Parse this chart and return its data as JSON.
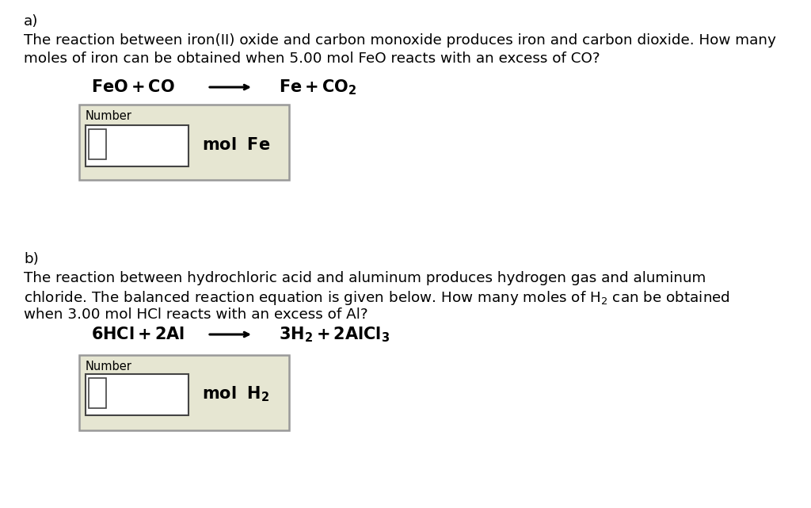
{
  "background_color": "#ffffff",
  "part_a_label": "a)",
  "part_a_text_line1": "The reaction between iron(II) oxide and carbon monoxide produces iron and carbon dioxide. How many",
  "part_a_text_line2": "moles of iron can be obtained when 5.00 mol FeO reacts with an excess of CO?",
  "part_a_unit": "mol  Fe",
  "part_b_label": "b)",
  "part_b_text_line1": "The reaction between hydrochloric acid and aluminum produces hydrogen gas and aluminum",
  "part_b_text_line2": "chloride. The balanced reaction equation is given below. How many moles of H$_2$ can be obtained",
  "part_b_text_line3": "when 3.00 mol HCl reacts with an excess of Al?",
  "part_b_unit": "mol  H$_2$",
  "box_bg": "#e6e6d2",
  "box_border": "#999999",
  "inner_box_bg": "#ffffff",
  "inner_box_border": "#444444",
  "number_label": "Number",
  "eq_fontsize": 15,
  "text_fontsize": 13.2,
  "number_fontsize": 10.5
}
